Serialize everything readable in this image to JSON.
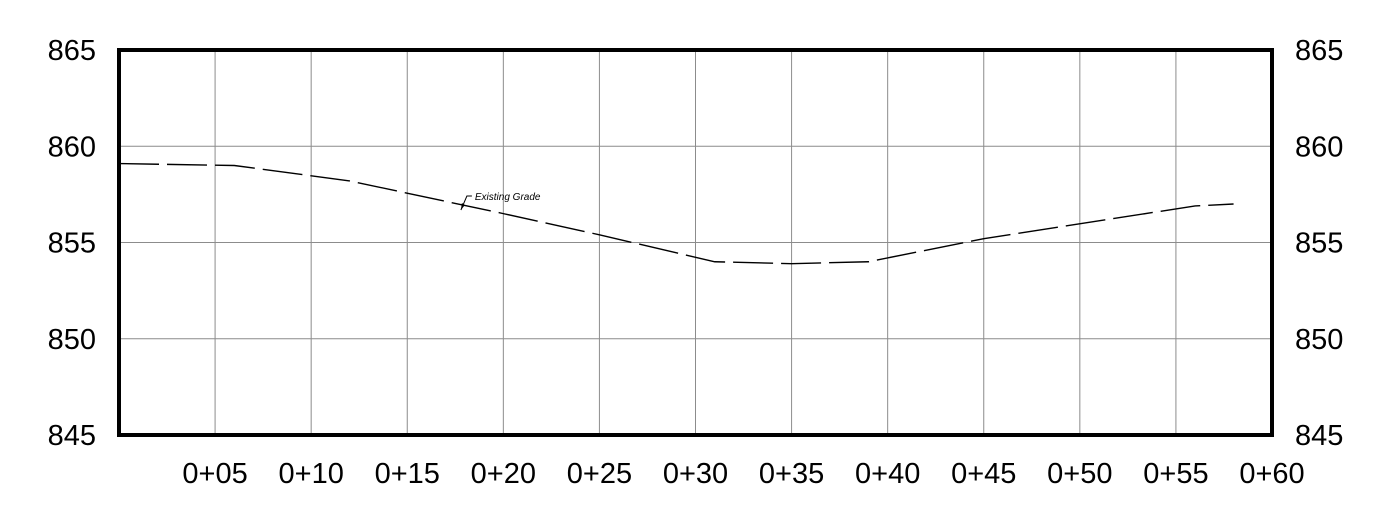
{
  "chart_data": {
    "type": "line",
    "title": "",
    "xlabel": "",
    "ylabel": "",
    "xlim": [
      0,
      60
    ],
    "ylim": [
      845,
      865
    ],
    "grid": true,
    "x_ticks": [
      5,
      10,
      15,
      20,
      25,
      30,
      35,
      40,
      45,
      50,
      55,
      60
    ],
    "x_tick_labels": [
      "0+05",
      "0+10",
      "0+15",
      "0+20",
      "0+25",
      "0+30",
      "0+35",
      "0+40",
      "0+45",
      "0+50",
      "0+55",
      "0+60"
    ],
    "y_ticks": [
      845,
      850,
      855,
      860,
      865
    ],
    "y_tick_labels": [
      "845",
      "850",
      "855",
      "860",
      "865"
    ],
    "y_axis_both_sides": true,
    "series": [
      {
        "name": "Existing Grade",
        "line_style": "dashed",
        "color": "#000000",
        "x": [
          0,
          6,
          12,
          20,
          25,
          31,
          35,
          39,
          45,
          56,
          58
        ],
        "y": [
          859.1,
          859.0,
          858.2,
          856.5,
          855.4,
          854.0,
          853.9,
          854.0,
          855.2,
          856.9,
          857.0
        ]
      }
    ],
    "annotations": [
      {
        "text": "Existing Grade",
        "x": 18,
        "y": 857.0
      }
    ]
  }
}
